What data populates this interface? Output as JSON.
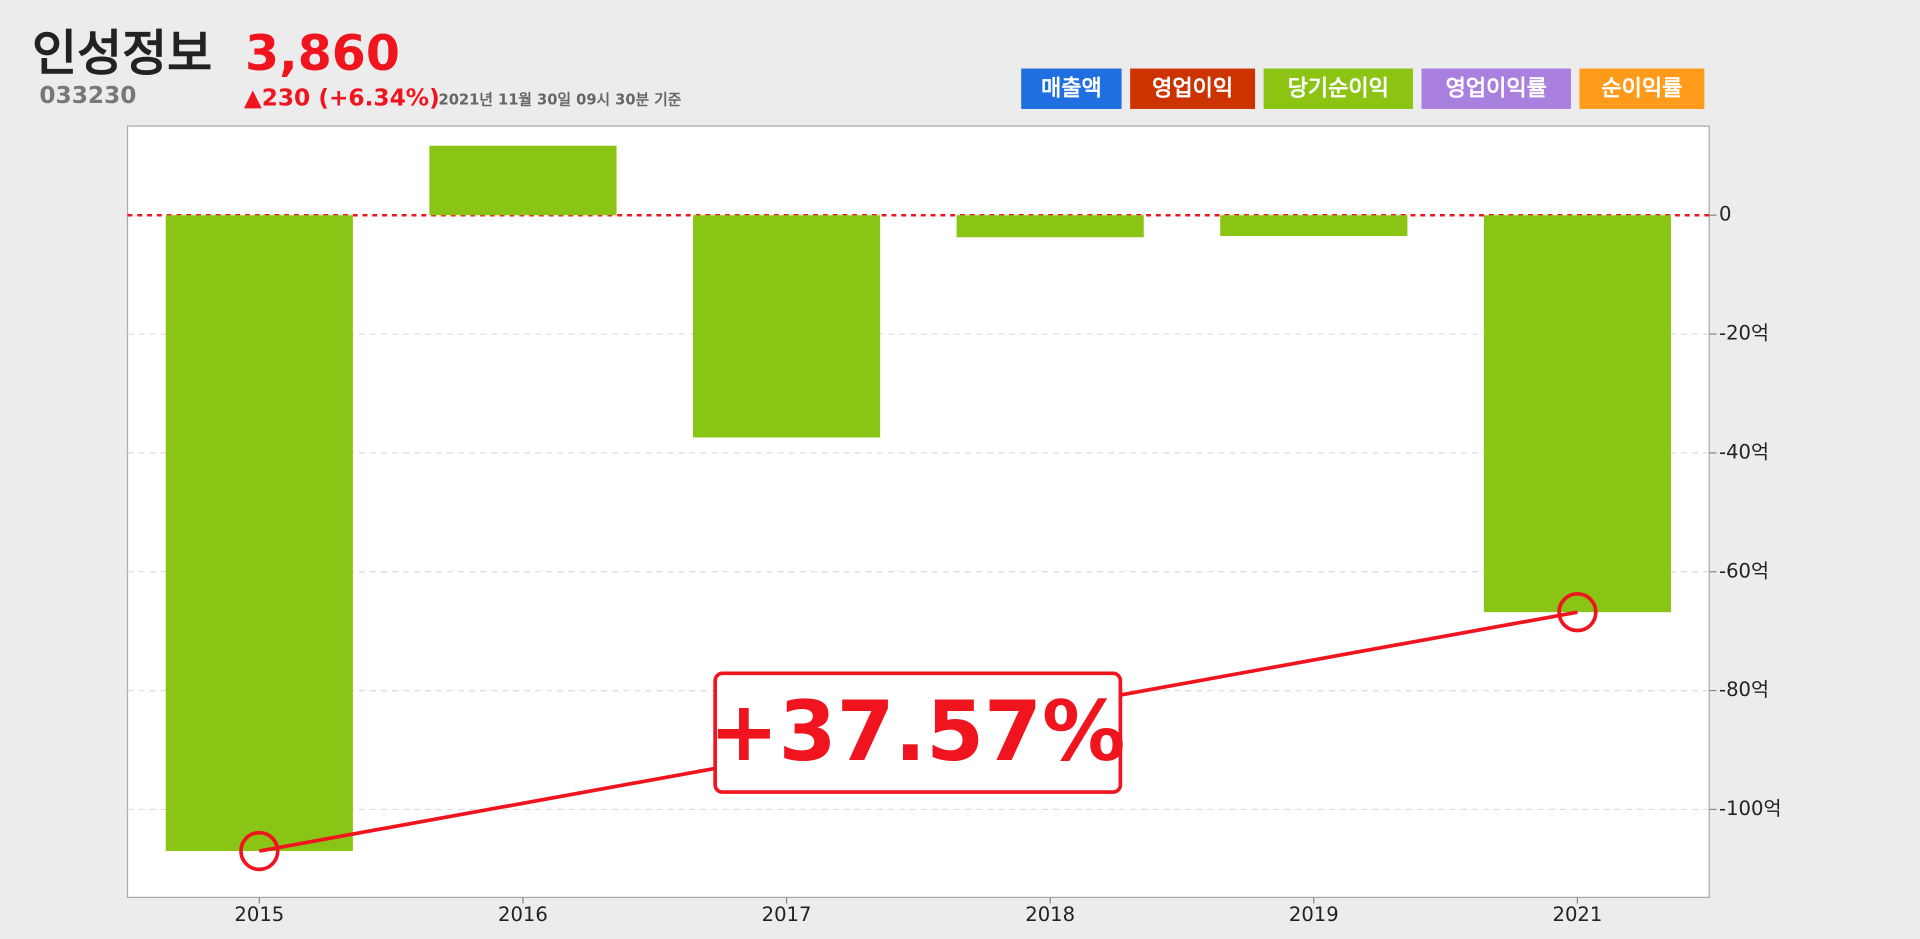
{
  "header": {
    "name": "인성정보",
    "price": "3,860",
    "code": "033230",
    "change": "▲230 (+6.34%)",
    "timestamp": "2021년 11월 30일 09시 30분 기준"
  },
  "chart_data": {
    "type": "bar",
    "legend_items": [
      {
        "label": "매출액",
        "color": "#1f6fe0"
      },
      {
        "label": "영업이익",
        "color": "#cc3300"
      },
      {
        "label": "당기순이익",
        "color": "#8cc414"
      },
      {
        "label": "영업이익률",
        "color": "#a97fe0"
      },
      {
        "label": "순이익률",
        "color": "#ff9a1a"
      }
    ],
    "categories": [
      "2015",
      "2016",
      "2017",
      "2018",
      "2019",
      "2021"
    ],
    "series": [
      {
        "color": "#8ac414",
        "values": [
          -107,
          11.7,
          -37.4,
          -3.7,
          -3.5,
          -66.8
        ]
      }
    ],
    "ylim": [
      -114.8,
      15
    ],
    "yticks": [
      {
        "value": 0,
        "label": "0"
      },
      {
        "value": -20,
        "label": "-20억"
      },
      {
        "value": -40,
        "label": "-40억"
      },
      {
        "value": -60,
        "label": "-60억"
      },
      {
        "value": -80,
        "label": "-80억"
      },
      {
        "value": -100,
        "label": "-100억"
      }
    ],
    "grid": true,
    "annotation": "+37.57%"
  }
}
